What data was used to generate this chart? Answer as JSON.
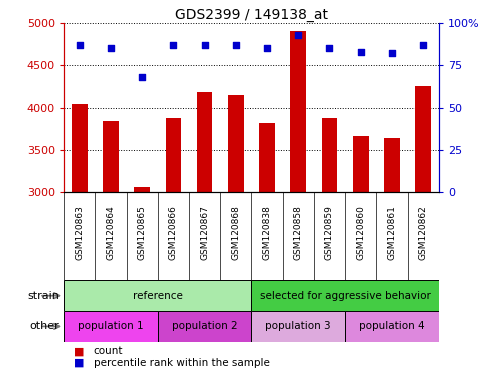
{
  "title": "GDS2399 / 149138_at",
  "samples": [
    "GSM120863",
    "GSM120864",
    "GSM120865",
    "GSM120866",
    "GSM120867",
    "GSM120868",
    "GSM120838",
    "GSM120858",
    "GSM120859",
    "GSM120860",
    "GSM120861",
    "GSM120862"
  ],
  "counts": [
    4040,
    3840,
    3060,
    3880,
    4180,
    4150,
    3820,
    4900,
    3880,
    3660,
    3640,
    4260
  ],
  "percentile_ranks": [
    87,
    85,
    68,
    87,
    87,
    87,
    85,
    93,
    85,
    83,
    82,
    87
  ],
  "ymin": 3000,
  "ymax": 5000,
  "yticks": [
    3000,
    3500,
    4000,
    4500,
    5000
  ],
  "right_yticks": [
    0,
    25,
    50,
    75,
    100
  ],
  "bar_color": "#cc0000",
  "dot_color": "#0000cc",
  "bar_width": 0.5,
  "strain_groups": [
    {
      "label": "reference",
      "start": 0,
      "end": 6,
      "color": "#aaeaaa"
    },
    {
      "label": "selected for aggressive behavior",
      "start": 6,
      "end": 12,
      "color": "#44cc44"
    }
  ],
  "other_groups": [
    {
      "label": "population 1",
      "start": 0,
      "end": 3,
      "color": "#ee44ee"
    },
    {
      "label": "population 2",
      "start": 3,
      "end": 6,
      "color": "#cc44cc"
    },
    {
      "label": "population 3",
      "start": 6,
      "end": 9,
      "color": "#ddaadd"
    },
    {
      "label": "population 4",
      "start": 9,
      "end": 12,
      "color": "#dd88dd"
    }
  ],
  "left_label_color": "#cc0000",
  "right_label_color": "#0000cc",
  "bg_color": "#ffffff",
  "tick_bg_color": "#dddddd",
  "grid_color": "#000000"
}
